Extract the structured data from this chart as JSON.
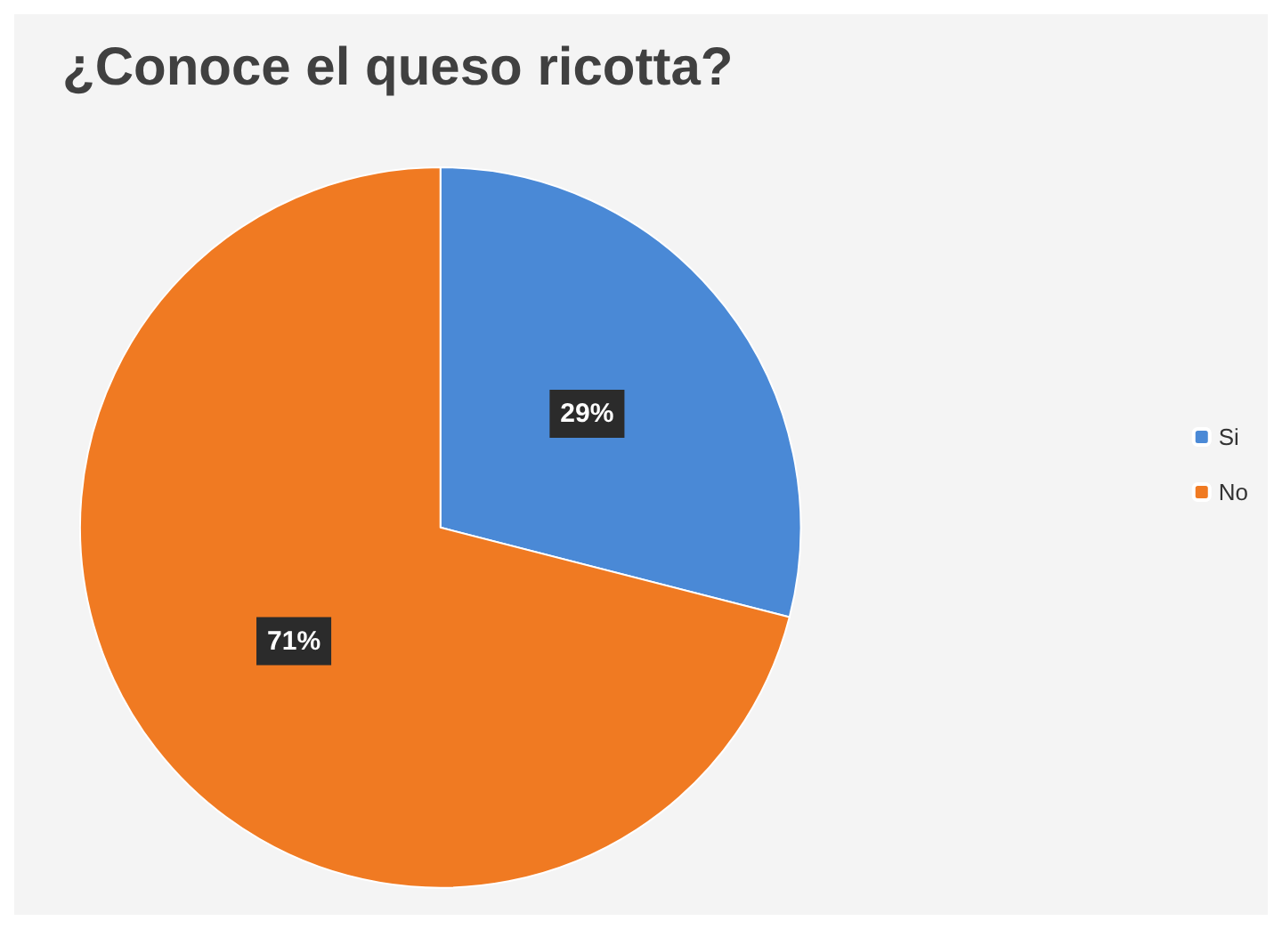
{
  "chart_data": {
    "type": "pie",
    "title": "¿Conoce el queso ricotta?",
    "categories": [
      "Si",
      "No"
    ],
    "values": [
      29,
      71
    ],
    "colors": [
      "#4a89d6",
      "#f07a22"
    ],
    "value_labels": [
      "29%",
      "71%"
    ],
    "legend": "right"
  }
}
